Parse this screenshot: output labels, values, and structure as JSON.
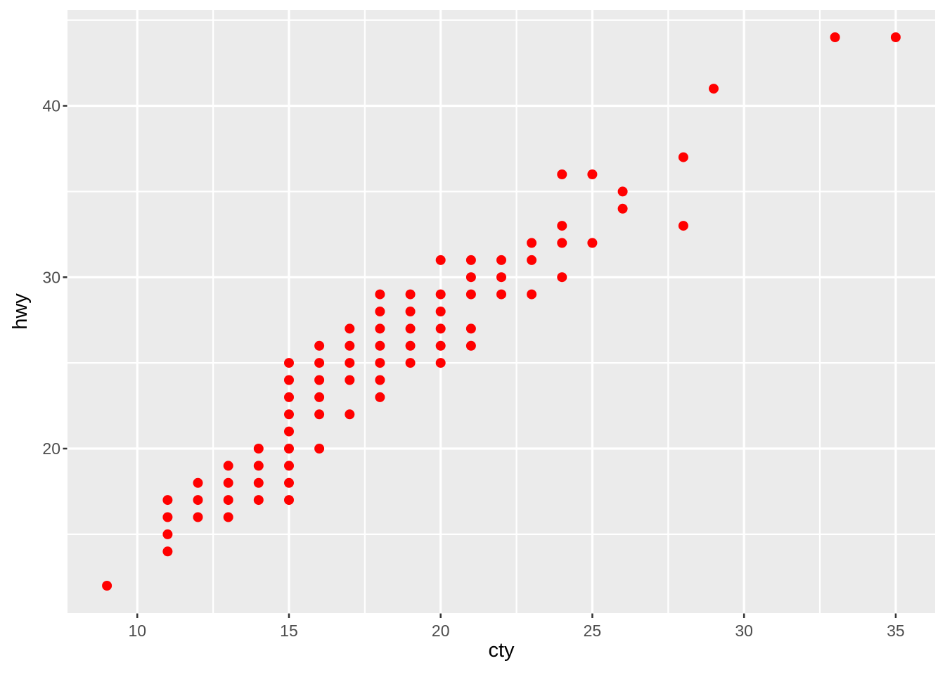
{
  "chart_data": {
    "type": "scatter",
    "title": "",
    "xlabel": "cty",
    "ylabel": "hwy",
    "x_ticks": [
      10,
      15,
      20,
      25,
      30,
      35
    ],
    "y_ticks": [
      20,
      30,
      40
    ],
    "x_minor_gridlines": [
      12.5,
      17.5,
      22.5,
      27.5,
      32.5
    ],
    "y_minor_gridlines": [
      15,
      25,
      35,
      45
    ],
    "xlim": [
      7.7,
      36.3
    ],
    "ylim": [
      10.4,
      45.6
    ],
    "grid": "on",
    "legend_position": "none",
    "points": [
      [
        9,
        12
      ],
      [
        11,
        14
      ],
      [
        11,
        15
      ],
      [
        11,
        16
      ],
      [
        11,
        17
      ],
      [
        12,
        16
      ],
      [
        12,
        17
      ],
      [
        12,
        18
      ],
      [
        13,
        16
      ],
      [
        13,
        17
      ],
      [
        13,
        18
      ],
      [
        13,
        19
      ],
      [
        14,
        17
      ],
      [
        14,
        18
      ],
      [
        14,
        19
      ],
      [
        14,
        20
      ],
      [
        15,
        17
      ],
      [
        15,
        18
      ],
      [
        15,
        19
      ],
      [
        15,
        20
      ],
      [
        15,
        21
      ],
      [
        15,
        22
      ],
      [
        15,
        23
      ],
      [
        15,
        24
      ],
      [
        15,
        25
      ],
      [
        16,
        20
      ],
      [
        16,
        22
      ],
      [
        16,
        23
      ],
      [
        16,
        24
      ],
      [
        16,
        25
      ],
      [
        16,
        26
      ],
      [
        17,
        22
      ],
      [
        17,
        24
      ],
      [
        17,
        25
      ],
      [
        17,
        26
      ],
      [
        17,
        27
      ],
      [
        18,
        23
      ],
      [
        18,
        24
      ],
      [
        18,
        25
      ],
      [
        18,
        26
      ],
      [
        18,
        27
      ],
      [
        18,
        28
      ],
      [
        18,
        29
      ],
      [
        19,
        25
      ],
      [
        19,
        26
      ],
      [
        19,
        27
      ],
      [
        19,
        28
      ],
      [
        19,
        29
      ],
      [
        20,
        25
      ],
      [
        20,
        26
      ],
      [
        20,
        27
      ],
      [
        20,
        28
      ],
      [
        20,
        29
      ],
      [
        20,
        31
      ],
      [
        21,
        26
      ],
      [
        21,
        27
      ],
      [
        21,
        29
      ],
      [
        21,
        30
      ],
      [
        21,
        31
      ],
      [
        22,
        29
      ],
      [
        22,
        30
      ],
      [
        22,
        31
      ],
      [
        23,
        29
      ],
      [
        23,
        31
      ],
      [
        23,
        32
      ],
      [
        24,
        30
      ],
      [
        24,
        32
      ],
      [
        24,
        33
      ],
      [
        24,
        36
      ],
      [
        25,
        32
      ],
      [
        25,
        36
      ],
      [
        26,
        34
      ],
      [
        26,
        35
      ],
      [
        28,
        33
      ],
      [
        28,
        37
      ],
      [
        29,
        41
      ],
      [
        33,
        44
      ],
      [
        35,
        44
      ]
    ],
    "style": {
      "point_color": "#FF0000",
      "point_radius": 7,
      "panel_bg": "#EBEBEB",
      "plot_bg": "#FFFFFF",
      "grid_color": "#FFFFFF",
      "major_grid_width": 3.2,
      "minor_grid_width": 2.2,
      "tick_color": "#333333",
      "tick_label_color": "#4D4D4D",
      "axis_title_color": "#000000"
    }
  }
}
